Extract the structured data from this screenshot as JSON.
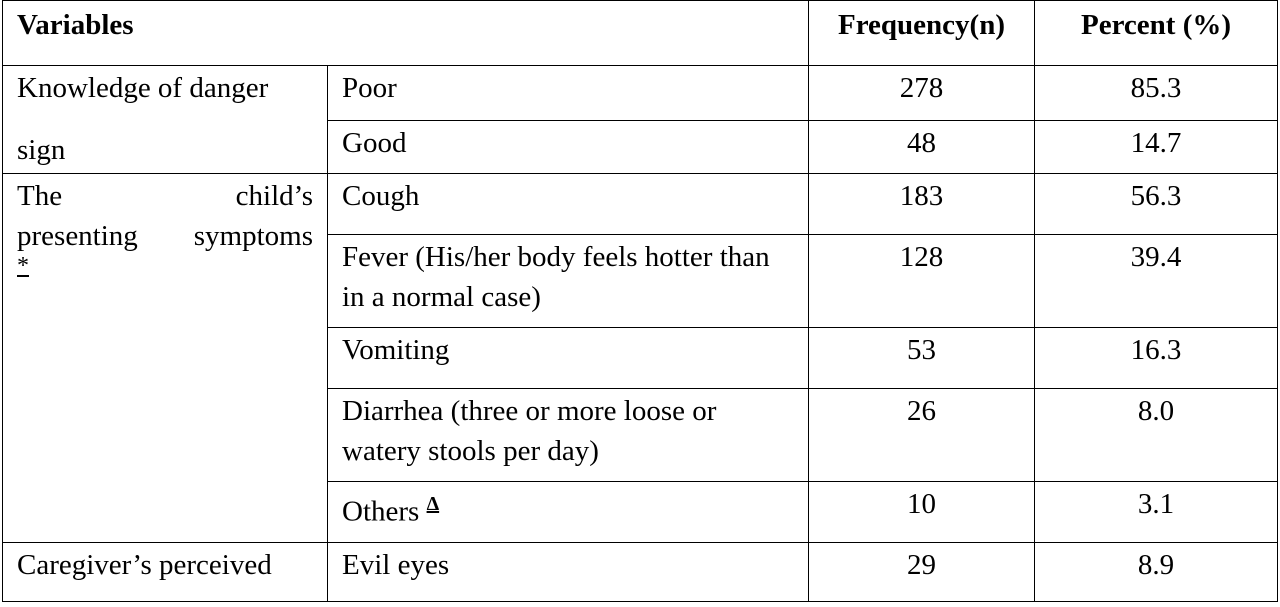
{
  "header": {
    "variables": "Variables",
    "frequency": "Frequency(n)",
    "percent": "Percent (%)"
  },
  "groups": {
    "knowledge": {
      "line1": "Knowledge of danger",
      "line2": "sign"
    },
    "symptoms": {
      "word1": "The",
      "word2": "child’s",
      "word3": "presenting",
      "word4": "symptoms",
      "mark": "*"
    },
    "perceived": {
      "line1": "Caregiver’s perceived"
    }
  },
  "rows": [
    {
      "label": "Poor",
      "n": "278",
      "pct": "85.3"
    },
    {
      "label": "Good",
      "n": "48",
      "pct": "14.7"
    },
    {
      "label": "Cough",
      "n": "183",
      "pct": "56.3"
    },
    {
      "label": "Fever (His/her body feels hotter than in a normal case)",
      "n": "128",
      "pct": "39.4"
    },
    {
      "label": "Vomiting",
      "n": "53",
      "pct": "16.3"
    },
    {
      "label": "Diarrhea (three or more loose or watery stools per day)",
      "n": "26",
      "pct": "8.0"
    },
    {
      "label": "Others",
      "mark": "Δ",
      "n": "10",
      "pct": "3.1"
    },
    {
      "label": "Evil eyes",
      "n": "29",
      "pct": "8.9"
    }
  ]
}
